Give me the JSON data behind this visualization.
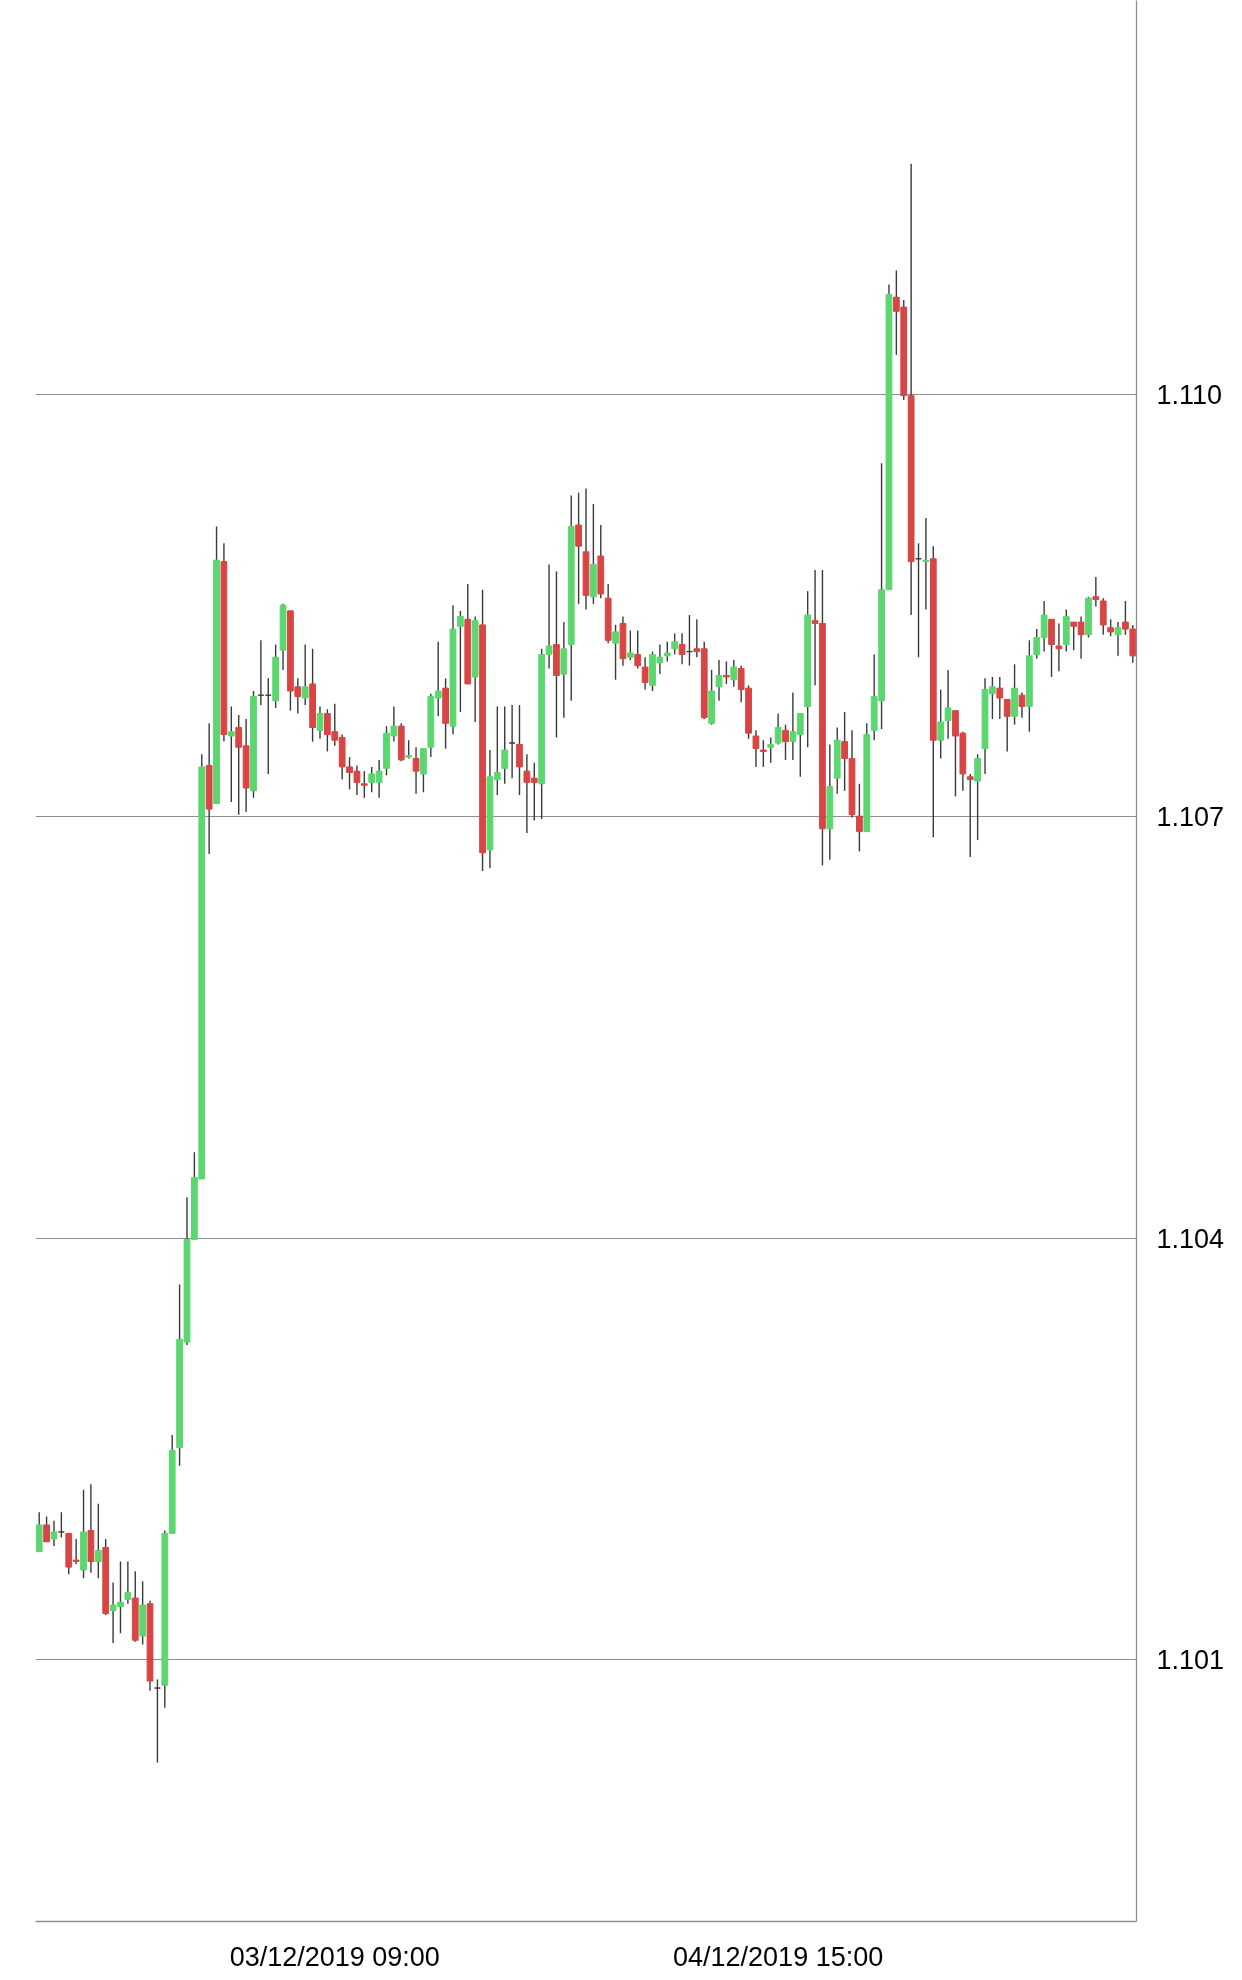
{
  "chart_data": {
    "type": "candlestick",
    "x": [
      "2019-12-02T13:00",
      "2019-12-02T13:30",
      "2019-12-02T14:00",
      "2019-12-02T14:30",
      "2019-12-02T15:00",
      "2019-12-02T15:30",
      "2019-12-02T16:00",
      "2019-12-02T16:30",
      "2019-12-02T17:00",
      "2019-12-02T17:30",
      "2019-12-02T18:00",
      "2019-12-02T18:30",
      "2019-12-02T19:00",
      "2019-12-02T19:30",
      "2019-12-02T20:00",
      "2019-12-02T20:30",
      "2019-12-02T21:00",
      "2019-12-02T21:30",
      "2019-12-02T22:00",
      "2019-12-02T22:30",
      "2019-12-02T23:00",
      "2019-12-02T23:30",
      "2019-12-03T00:00",
      "2019-12-03T00:30",
      "2019-12-03T01:00",
      "2019-12-03T01:30",
      "2019-12-03T02:00",
      "2019-12-03T02:30",
      "2019-12-03T03:00",
      "2019-12-03T03:30",
      "2019-12-03T04:00",
      "2019-12-03T04:30",
      "2019-12-03T05:00",
      "2019-12-03T05:30",
      "2019-12-03T06:00",
      "2019-12-03T06:30",
      "2019-12-03T07:00",
      "2019-12-03T07:30",
      "2019-12-03T08:00",
      "2019-12-03T08:30",
      "2019-12-03T09:00",
      "2019-12-03T09:30",
      "2019-12-03T10:00",
      "2019-12-03T10:30",
      "2019-12-03T11:00",
      "2019-12-03T11:30",
      "2019-12-03T12:00",
      "2019-12-03T12:30",
      "2019-12-03T13:00",
      "2019-12-03T13:30",
      "2019-12-03T14:00",
      "2019-12-03T14:30",
      "2019-12-03T15:00",
      "2019-12-03T15:30",
      "2019-12-03T16:00",
      "2019-12-03T16:30",
      "2019-12-03T17:00",
      "2019-12-03T17:30",
      "2019-12-03T18:00",
      "2019-12-03T18:30",
      "2019-12-03T19:00",
      "2019-12-03T19:30",
      "2019-12-03T20:00",
      "2019-12-03T20:30",
      "2019-12-03T21:00",
      "2019-12-03T21:30",
      "2019-12-03T22:00",
      "2019-12-03T22:30",
      "2019-12-03T23:00",
      "2019-12-03T23:30",
      "2019-12-04T00:00",
      "2019-12-04T00:30",
      "2019-12-04T01:00",
      "2019-12-04T01:30",
      "2019-12-04T02:00",
      "2019-12-04T02:30",
      "2019-12-04T03:00",
      "2019-12-04T03:30",
      "2019-12-04T04:00",
      "2019-12-04T04:30",
      "2019-12-04T05:00",
      "2019-12-04T05:30",
      "2019-12-04T06:00",
      "2019-12-04T06:30",
      "2019-12-04T07:00",
      "2019-12-04T07:30",
      "2019-12-04T08:00",
      "2019-12-04T08:30",
      "2019-12-04T09:00",
      "2019-12-04T09:30",
      "2019-12-04T10:00",
      "2019-12-04T10:30",
      "2019-12-04T11:00",
      "2019-12-04T11:30",
      "2019-12-04T12:00",
      "2019-12-04T12:30",
      "2019-12-04T13:00",
      "2019-12-04T13:30",
      "2019-12-04T14:00",
      "2019-12-04T14:30",
      "2019-12-04T15:00",
      "2019-12-04T15:30",
      "2019-12-04T16:00",
      "2019-12-04T16:30",
      "2019-12-04T17:00",
      "2019-12-04T17:30",
      "2019-12-04T18:00",
      "2019-12-04T18:30",
      "2019-12-04T19:00",
      "2019-12-04T19:30",
      "2019-12-04T20:00",
      "2019-12-04T20:30",
      "2019-12-04T21:00",
      "2019-12-04T21:30",
      "2019-12-04T22:00",
      "2019-12-04T22:30",
      "2019-12-04T23:00",
      "2019-12-04T23:30",
      "2019-12-05T00:00",
      "2019-12-05T00:30",
      "2019-12-05T01:00",
      "2019-12-05T01:30",
      "2019-12-05T02:00",
      "2019-12-05T02:30",
      "2019-12-05T03:00",
      "2019-12-05T03:30",
      "2019-12-05T04:00",
      "2019-12-05T04:30",
      "2019-12-05T05:00",
      "2019-12-05T05:30",
      "2019-12-05T06:00",
      "2019-12-05T06:30",
      "2019-12-05T07:00",
      "2019-12-05T07:30",
      "2019-12-05T08:00",
      "2019-12-05T08:30",
      "2019-12-05T09:00",
      "2019-12-05T09:30",
      "2019-12-05T10:00",
      "2019-12-05T10:30",
      "2019-12-05T11:00",
      "2019-12-05T11:30",
      "2019-12-05T12:00",
      "2019-12-05T12:30",
      "2019-12-05T13:00",
      "2019-12-05T13:30",
      "2019-12-05T14:00",
      "2019-12-05T14:30",
      "2019-12-05T15:00"
    ],
    "ohlc": [
      [
        1.10177,
        1.10205,
        1.10177,
        1.10196
      ],
      [
        1.10196,
        1.10202,
        1.10184,
        1.10184
      ],
      [
        1.10186,
        1.10199,
        1.10181,
        1.10191
      ],
      [
        1.10191,
        1.10205,
        1.10187,
        1.10191
      ],
      [
        1.1019,
        1.1019,
        1.10161,
        1.10166
      ],
      [
        1.10171,
        1.10186,
        1.10168,
        1.1017
      ],
      [
        1.10164,
        1.10221,
        1.10158,
        1.10191
      ],
      [
        1.10192,
        1.10225,
        1.10162,
        1.1017
      ],
      [
        1.1017,
        1.10211,
        1.10158,
        1.10178
      ],
      [
        1.1018,
        1.10186,
        1.10132,
        1.10133
      ],
      [
        1.10135,
        1.10155,
        1.10112,
        1.10139
      ],
      [
        1.10138,
        1.1017,
        1.10119,
        1.10141
      ],
      [
        1.10143,
        1.1017,
        1.1014,
        1.10148
      ],
      [
        1.10144,
        1.10163,
        1.10113,
        1.10114
      ],
      [
        1.10117,
        1.10156,
        1.10111,
        1.10139
      ],
      [
        1.1014,
        1.10142,
        1.10078,
        1.10085
      ],
      [
        1.1008,
        1.10086,
        1.10027,
        1.1008
      ],
      [
        1.10082,
        1.10192,
        1.10066,
        1.1019
      ],
      [
        1.1019,
        1.1026,
        1.1019,
        1.10249
      ],
      [
        1.10251,
        1.10367,
        1.10238,
        1.10328
      ],
      [
        1.10326,
        1.10429,
        1.10324,
        1.10399
      ],
      [
        1.10399,
        1.10461,
        1.10399,
        1.10443
      ],
      [
        1.10442,
        1.10744,
        1.10442,
        1.10735
      ],
      [
        1.10736,
        1.10766,
        1.10673,
        1.10705
      ],
      [
        1.10709,
        1.10906,
        1.10709,
        1.10882
      ],
      [
        1.10881,
        1.10894,
        1.10753,
        1.10758
      ],
      [
        1.10757,
        1.10778,
        1.1071,
        1.1076
      ],
      [
        1.10763,
        1.10772,
        1.10701,
        1.10749
      ],
      [
        1.1075,
        1.10769,
        1.10703,
        1.1072
      ],
      [
        1.10718,
        1.10789,
        1.10713,
        1.10785
      ],
      [
        1.10786,
        1.10825,
        1.10779,
        1.10786
      ],
      [
        1.10786,
        1.10798,
        1.1073,
        1.10786
      ],
      [
        1.10782,
        1.10822,
        1.10777,
        1.10813
      ],
      [
        1.10818,
        1.10851,
        1.10804,
        1.1085
      ],
      [
        1.10846,
        1.10846,
        1.10775,
        1.10789
      ],
      [
        1.10792,
        1.10798,
        1.10773,
        1.10785
      ],
      [
        1.10784,
        1.10822,
        1.10779,
        1.10792
      ],
      [
        1.10794,
        1.10819,
        1.10753,
        1.10763
      ],
      [
        1.10761,
        1.10778,
        1.10755,
        1.10773
      ],
      [
        1.10773,
        1.10776,
        1.10746,
        1.10758
      ],
      [
        1.1076,
        1.1078,
        1.1075,
        1.10754
      ],
      [
        1.10756,
        1.10758,
        1.10726,
        1.10735
      ],
      [
        1.10735,
        1.10742,
        1.10719,
        1.10731
      ],
      [
        1.10732,
        1.10736,
        1.10715,
        1.10724
      ],
      [
        1.10723,
        1.10732,
        1.10713,
        1.10722
      ],
      [
        1.10724,
        1.10735,
        1.10717,
        1.1073
      ],
      [
        1.10724,
        1.1074,
        1.10713,
        1.10732
      ],
      [
        1.10734,
        1.10764,
        1.10729,
        1.10759
      ],
      [
        1.10757,
        1.10778,
        1.10753,
        1.10764
      ],
      [
        1.10764,
        1.10766,
        1.10739,
        1.1074
      ],
      [
        1.10742,
        1.10754,
        1.10741,
        1.10743
      ],
      [
        1.10741,
        1.10749,
        1.10716,
        1.10732
      ],
      [
        1.1073,
        1.10748,
        1.10717,
        1.10748
      ],
      [
        1.10749,
        1.10787,
        1.10742,
        1.10785
      ],
      [
        1.10784,
        1.10824,
        1.10771,
        1.10789
      ],
      [
        1.10791,
        1.10798,
        1.10748,
        1.10766
      ],
      [
        1.10764,
        1.1085,
        1.10758,
        1.10833
      ],
      [
        1.10835,
        1.10846,
        1.10774,
        1.10842
      ],
      [
        1.1084,
        1.10865,
        1.10794,
        1.10794
      ],
      [
        1.10799,
        1.10842,
        1.10767,
        1.10839
      ],
      [
        1.10836,
        1.10861,
        1.10661,
        1.10674
      ],
      [
        1.10676,
        1.10747,
        1.10663,
        1.10728
      ],
      [
        1.10726,
        1.10778,
        1.10715,
        1.10731
      ],
      [
        1.10734,
        1.10778,
        1.10723,
        1.10747
      ],
      [
        1.10752,
        1.10779,
        1.10727,
        1.10752
      ],
      [
        1.10751,
        1.10779,
        1.10715,
        1.10735
      ],
      [
        1.10732,
        1.10744,
        1.10688,
        1.10724
      ],
      [
        1.10727,
        1.10738,
        1.10697,
        1.10724
      ],
      [
        1.10723,
        1.10819,
        1.10698,
        1.10815
      ],
      [
        1.10815,
        1.10879,
        1.10805,
        1.10821
      ],
      [
        1.10822,
        1.10874,
        1.10756,
        1.108
      ],
      [
        1.10801,
        1.10838,
        1.1077,
        1.10819
      ],
      [
        1.10822,
        1.10928,
        1.10782,
        1.10906
      ],
      [
        1.10907,
        1.1093,
        1.10851,
        1.10892
      ],
      [
        1.10888,
        1.10933,
        1.10847,
        1.10857
      ],
      [
        1.10856,
        1.10922,
        1.10851,
        1.10879
      ],
      [
        1.10885,
        1.10907,
        1.10855,
        1.10858
      ],
      [
        1.10855,
        1.10865,
        1.10823,
        1.10825
      ],
      [
        1.10823,
        1.10836,
        1.10797,
        1.10831
      ],
      [
        1.10837,
        1.10842,
        1.10807,
        1.10812
      ],
      [
        1.10813,
        1.10832,
        1.10811,
        1.10816
      ],
      [
        1.10815,
        1.10832,
        1.10805,
        1.10807
      ],
      [
        1.10806,
        1.10813,
        1.1079,
        1.10795
      ],
      [
        1.10793,
        1.10817,
        1.10789,
        1.10815
      ],
      [
        1.10809,
        1.10822,
        1.10801,
        1.10813
      ],
      [
        1.10814,
        1.10824,
        1.1081,
        1.10816
      ],
      [
        1.10819,
        1.1083,
        1.10815,
        1.10824
      ],
      [
        1.10822,
        1.1083,
        1.10808,
        1.10815
      ],
      [
        1.10817,
        1.10843,
        1.10807,
        1.10817
      ],
      [
        1.10819,
        1.1084,
        1.10813,
        1.10817
      ],
      [
        1.10819,
        1.10824,
        1.10769,
        1.1077
      ],
      [
        1.10766,
        1.10804,
        1.10765,
        1.10789
      ],
      [
        1.10792,
        1.10811,
        1.10782,
        1.108
      ],
      [
        1.108,
        1.1081,
        1.10794,
        1.10799
      ],
      [
        1.10797,
        1.10811,
        1.10792,
        1.10806
      ],
      [
        1.10805,
        1.10807,
        1.10781,
        1.1079
      ],
      [
        1.10791,
        1.10793,
        1.10755,
        1.10759
      ],
      [
        1.10757,
        1.10761,
        1.10735,
        1.10748
      ],
      [
        1.10747,
        1.10754,
        1.10735,
        1.10746
      ],
      [
        1.10749,
        1.10756,
        1.10738,
        1.10751
      ],
      [
        1.10752,
        1.10773,
        1.10751,
        1.10763
      ],
      [
        1.10761,
        1.10765,
        1.1074,
        1.10753
      ],
      [
        1.10753,
        1.10788,
        1.1074,
        1.1076
      ],
      [
        1.10758,
        1.10773,
        1.10728,
        1.10773
      ],
      [
        1.10778,
        1.1086,
        1.10749,
        1.10843
      ],
      [
        1.10839,
        1.10875,
        1.10793,
        1.10837
      ],
      [
        1.10837,
        1.10875,
        1.10665,
        1.10691
      ],
      [
        1.10691,
        1.10751,
        1.10669,
        1.10721
      ],
      [
        1.10727,
        1.10763,
        1.10716,
        1.10754
      ],
      [
        1.10753,
        1.10774,
        1.10718,
        1.10741
      ],
      [
        1.10741,
        1.10761,
        1.10699,
        1.10701
      ],
      [
        1.107,
        1.10723,
        1.10675,
        1.10689
      ],
      [
        1.10689,
        1.10766,
        1.10689,
        1.10758
      ],
      [
        1.10761,
        1.10815,
        1.10754,
        1.10785
      ],
      [
        1.10782,
        1.10951,
        1.10762,
        1.10861
      ],
      [
        1.10861,
        1.11078,
        1.10861,
        1.11071
      ],
      [
        1.11069,
        1.11088,
        1.11028,
        1.11059
      ],
      [
        1.11062,
        1.11067,
        1.10996,
        1.10999
      ],
      [
        1.10999,
        1.11164,
        1.10843,
        1.10881
      ],
      [
        1.10883,
        1.10894,
        1.10813,
        1.10883
      ],
      [
        1.10881,
        1.10912,
        1.10847,
        1.10882
      ],
      [
        1.10883,
        1.10892,
        1.10685,
        1.10754
      ],
      [
        1.10754,
        1.1079,
        1.10741,
        1.10767
      ],
      [
        1.10768,
        1.10804,
        1.10755,
        1.10777
      ],
      [
        1.10775,
        1.10775,
        1.10714,
        1.10757
      ],
      [
        1.10759,
        1.1076,
        1.10718,
        1.1073
      ],
      [
        1.10728,
        1.1073,
        1.10671,
        1.10726
      ],
      [
        1.10725,
        1.10744,
        1.10683,
        1.10741
      ],
      [
        1.10748,
        1.10798,
        1.1073,
        1.1079
      ],
      [
        1.10787,
        1.10799,
        1.10769,
        1.10792
      ],
      [
        1.10791,
        1.10799,
        1.10769,
        1.10784
      ],
      [
        1.10783,
        1.10783,
        1.10746,
        1.10771
      ],
      [
        1.10771,
        1.10808,
        1.10765,
        1.10791
      ],
      [
        1.10786,
        1.10788,
        1.1077,
        1.10778
      ],
      [
        1.10778,
        1.10825,
        1.1076,
        1.10814
      ],
      [
        1.10815,
        1.10833,
        1.10812,
        1.10827
      ],
      [
        1.10827,
        1.10853,
        1.10817,
        1.10843
      ],
      [
        1.1084,
        1.1084,
        1.10799,
        1.10822
      ],
      [
        1.10821,
        1.10837,
        1.10803,
        1.10819
      ],
      [
        1.10822,
        1.10847,
        1.10817,
        1.10842
      ],
      [
        1.10838,
        1.10838,
        1.10818,
        1.10835
      ],
      [
        1.10838,
        1.10842,
        1.10812,
        1.10829
      ],
      [
        1.10829,
        1.10856,
        1.10827,
        1.10855
      ],
      [
        1.10856,
        1.1087,
        1.10849,
        1.10854
      ],
      [
        1.10853,
        1.10855,
        1.10829,
        1.10836
      ],
      [
        1.10834,
        1.1084,
        1.10828,
        1.10831
      ],
      [
        1.10829,
        1.10838,
        1.10814,
        1.10834
      ],
      [
        1.10838,
        1.10853,
        1.10829,
        1.10833
      ],
      [
        1.10833,
        1.10836,
        1.10809,
        1.10814
      ]
    ],
    "colors": [
      "#5cd66f",
      "#d84545",
      "#5cd66f",
      "#3a3a3a",
      "#d84545",
      "#d84545",
      "#5cd66f",
      "#d84545",
      "#5cd66f",
      "#d84545",
      "#5cd66f",
      "#5cd66f",
      "#5cd66f",
      "#d84545",
      "#5cd66f",
      "#d84545",
      "#3a3a3a",
      "#5cd66f",
      "#5cd66f",
      "#5cd66f",
      "#5cd66f",
      "#5cd66f",
      "#5cd66f",
      "#d84545",
      "#5cd66f",
      "#d84545",
      "#5cd66f",
      "#d84545",
      "#d84545",
      "#5cd66f",
      "#3a3a3a",
      "#3a3a3a",
      "#5cd66f",
      "#5cd66f",
      "#d84545",
      "#d84545",
      "#5cd66f",
      "#d84545",
      "#5cd66f",
      "#d84545",
      "#d84545",
      "#d84545",
      "#d84545",
      "#d84545",
      "#d84545",
      "#5cd66f",
      "#5cd66f",
      "#5cd66f",
      "#5cd66f",
      "#d84545",
      "#5cd66f",
      "#d84545",
      "#5cd66f",
      "#5cd66f",
      "#5cd66f",
      "#d84545",
      "#5cd66f",
      "#5cd66f",
      "#d84545",
      "#5cd66f",
      "#d84545",
      "#5cd66f",
      "#5cd66f",
      "#5cd66f",
      "#3a3a3a",
      "#d84545",
      "#d84545",
      "#d84545",
      "#5cd66f",
      "#5cd66f",
      "#d84545",
      "#5cd66f",
      "#5cd66f",
      "#d84545",
      "#d84545",
      "#5cd66f",
      "#d84545",
      "#d84545",
      "#5cd66f",
      "#d84545",
      "#5cd66f",
      "#d84545",
      "#d84545",
      "#5cd66f",
      "#5cd66f",
      "#5cd66f",
      "#5cd66f",
      "#d84545",
      "#3a3a3a",
      "#d84545",
      "#d84545",
      "#5cd66f",
      "#5cd66f",
      "#d84545",
      "#5cd66f",
      "#d84545",
      "#d84545",
      "#d84545",
      "#d84545",
      "#5cd66f",
      "#5cd66f",
      "#d84545",
      "#5cd66f",
      "#5cd66f",
      "#5cd66f",
      "#d84545",
      "#d84545",
      "#5cd66f",
      "#5cd66f",
      "#d84545",
      "#d84545",
      "#d84545",
      "#5cd66f",
      "#5cd66f",
      "#5cd66f",
      "#5cd66f",
      "#d84545",
      "#d84545",
      "#d84545",
      "#3a3a3a",
      "#5cd66f",
      "#d84545",
      "#5cd66f",
      "#5cd66f",
      "#d84545",
      "#d84545",
      "#d84545",
      "#5cd66f",
      "#5cd66f",
      "#5cd66f",
      "#d84545",
      "#d84545",
      "#5cd66f",
      "#d84545",
      "#5cd66f",
      "#5cd66f",
      "#5cd66f",
      "#d84545",
      "#d84545",
      "#5cd66f",
      "#d84545",
      "#d84545",
      "#5cd66f",
      "#d84545",
      "#d84545",
      "#d84545",
      "#5cd66f",
      "#d84545",
      "#d84545"
    ],
    "xlim": [
      "2019-12-02T12:45",
      "2019-12-05T15:15"
    ],
    "xticks": [
      {
        "value": "2019-12-03T09:00",
        "label": "03/12/2019 09:00"
      },
      {
        "value": "2019-12-04T15:00",
        "label": "04/12/2019 15:00"
      }
    ],
    "ylim": [
      1.09914,
      1.1128
    ],
    "yticks": [
      1.101,
      1.104,
      1.107,
      {
        "value": 1.11,
        "label": "1.110"
      }
    ],
    "grid": "y"
  }
}
